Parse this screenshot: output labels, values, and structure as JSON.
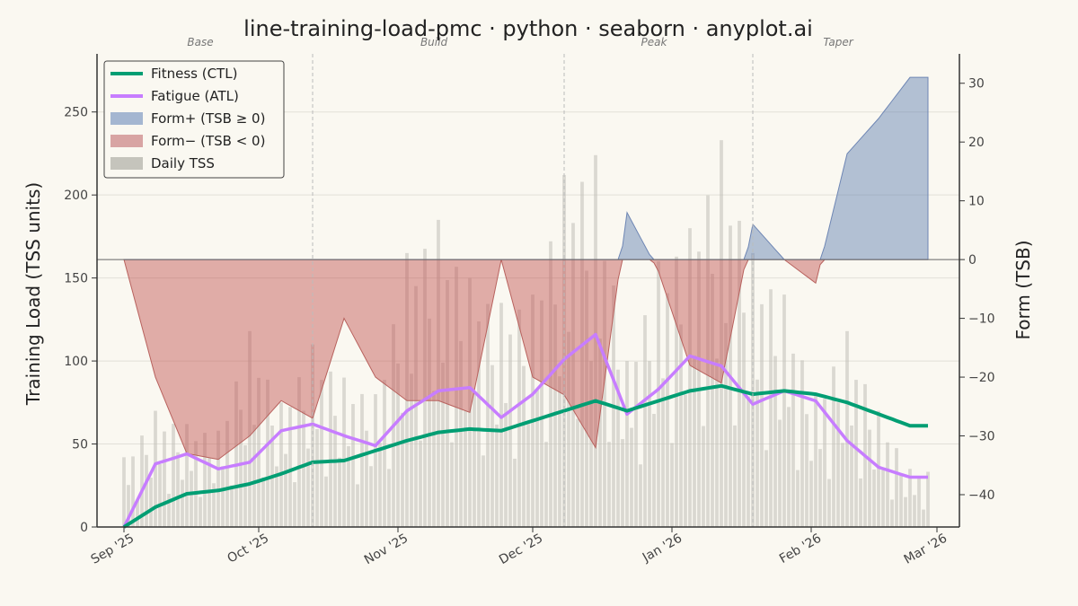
{
  "chart_data": {
    "type": "line",
    "title": "line-training-load-pmc · python · seaborn · anyplot.ai",
    "ylabel": "Training Load (TSS units)",
    "y2label": "Form (TSB)",
    "ylim": [
      0,
      285
    ],
    "y2lim": [
      -45.5,
      35
    ],
    "xlim": [
      "2025-08-26",
      "2026-03-06"
    ],
    "x_ticks": [
      {
        "date": "2025-09-01",
        "label": "Sep '25"
      },
      {
        "date": "2025-10-01",
        "label": "Oct '25"
      },
      {
        "date": "2025-11-01",
        "label": "Nov '25"
      },
      {
        "date": "2025-12-01",
        "label": "Dec '25"
      },
      {
        "date": "2026-01-01",
        "label": "Jan '26"
      },
      {
        "date": "2026-02-01",
        "label": "Feb '26"
      },
      {
        "date": "2026-03-01",
        "label": "Mar '26"
      }
    ],
    "y_ticks": [
      "0",
      "50",
      "100",
      "150",
      "200",
      "250"
    ],
    "y2_ticks": [
      "−40",
      "−30",
      "−20",
      "−10",
      "0",
      "10",
      "20",
      "30"
    ],
    "grid": true,
    "legend": {
      "position": "top-left",
      "entries": [
        {
          "label": "Fitness (CTL)",
          "kind": "line",
          "color": "#009E73"
        },
        {
          "label": "Fatigue (ATL)",
          "kind": "line",
          "color": "#C77DFF"
        },
        {
          "label": "Form+ (TSB ≥ 0)",
          "kind": "patch",
          "color": "#9AAECD"
        },
        {
          "label": "Form− (TSB < 0)",
          "kind": "patch",
          "color": "#D49A9A"
        },
        {
          "label": "Daily TSS",
          "kind": "patch",
          "color": "#BFBEB6"
        }
      ]
    },
    "phases": [
      {
        "label": "Base",
        "date": "2025-09-18"
      },
      {
        "label": "Build",
        "date": "2025-11-09"
      },
      {
        "label": "Peak",
        "date": "2025-12-28"
      },
      {
        "label": "Taper",
        "date": "2026-02-07"
      }
    ],
    "phase_boundaries": [
      "2025-10-13",
      "2025-12-08",
      "2026-01-19"
    ],
    "x": [
      "2025-09-01",
      "2025-09-08",
      "2025-09-15",
      "2025-09-22",
      "2025-09-29",
      "2025-10-06",
      "2025-10-13",
      "2025-10-20",
      "2025-10-27",
      "2025-11-03",
      "2025-11-10",
      "2025-11-17",
      "2025-11-24",
      "2025-12-01",
      "2025-12-08",
      "2025-12-15",
      "2025-12-22",
      "2025-12-29",
      "2026-01-05",
      "2026-01-12",
      "2026-01-19",
      "2026-01-26",
      "2026-02-02",
      "2026-02-09",
      "2026-02-16",
      "2026-02-23"
    ],
    "series": [
      {
        "name": "Fitness (CTL)",
        "color": "#009E73",
        "values": [
          0,
          12,
          20,
          22,
          26,
          32,
          39,
          40,
          46,
          52,
          57,
          59,
          58,
          64,
          70,
          76,
          70,
          76,
          82,
          85,
          80,
          82,
          80,
          75,
          68,
          61
        ]
      },
      {
        "name": "Fatigue (ATL)",
        "color": "#C77DFF",
        "values": [
          0,
          38,
          44,
          35,
          39,
          58,
          62,
          55,
          49,
          70,
          82,
          84,
          66,
          80,
          101,
          116,
          68,
          83,
          103,
          97,
          74,
          82,
          76,
          52,
          36,
          30
        ]
      },
      {
        "name": "Form (TSB)",
        "axis": "right",
        "values": [
          0,
          -20,
          -33,
          -34,
          -30,
          -24,
          -27,
          -10,
          -20,
          -24,
          -24,
          -26,
          0,
          -20,
          -23,
          -32,
          8,
          -2,
          -18,
          -21,
          6,
          0,
          -4,
          18,
          24,
          31
        ]
      },
      {
        "name": "Daily TSS",
        "values": [
          42,
          70,
          62,
          58,
          118,
          75,
          110,
          90,
          80,
          165,
          185,
          150,
          135,
          140,
          212,
          224,
          100,
          160,
          180,
          233,
          165,
          140,
          80,
          118,
          70,
          35
        ]
      }
    ]
  }
}
